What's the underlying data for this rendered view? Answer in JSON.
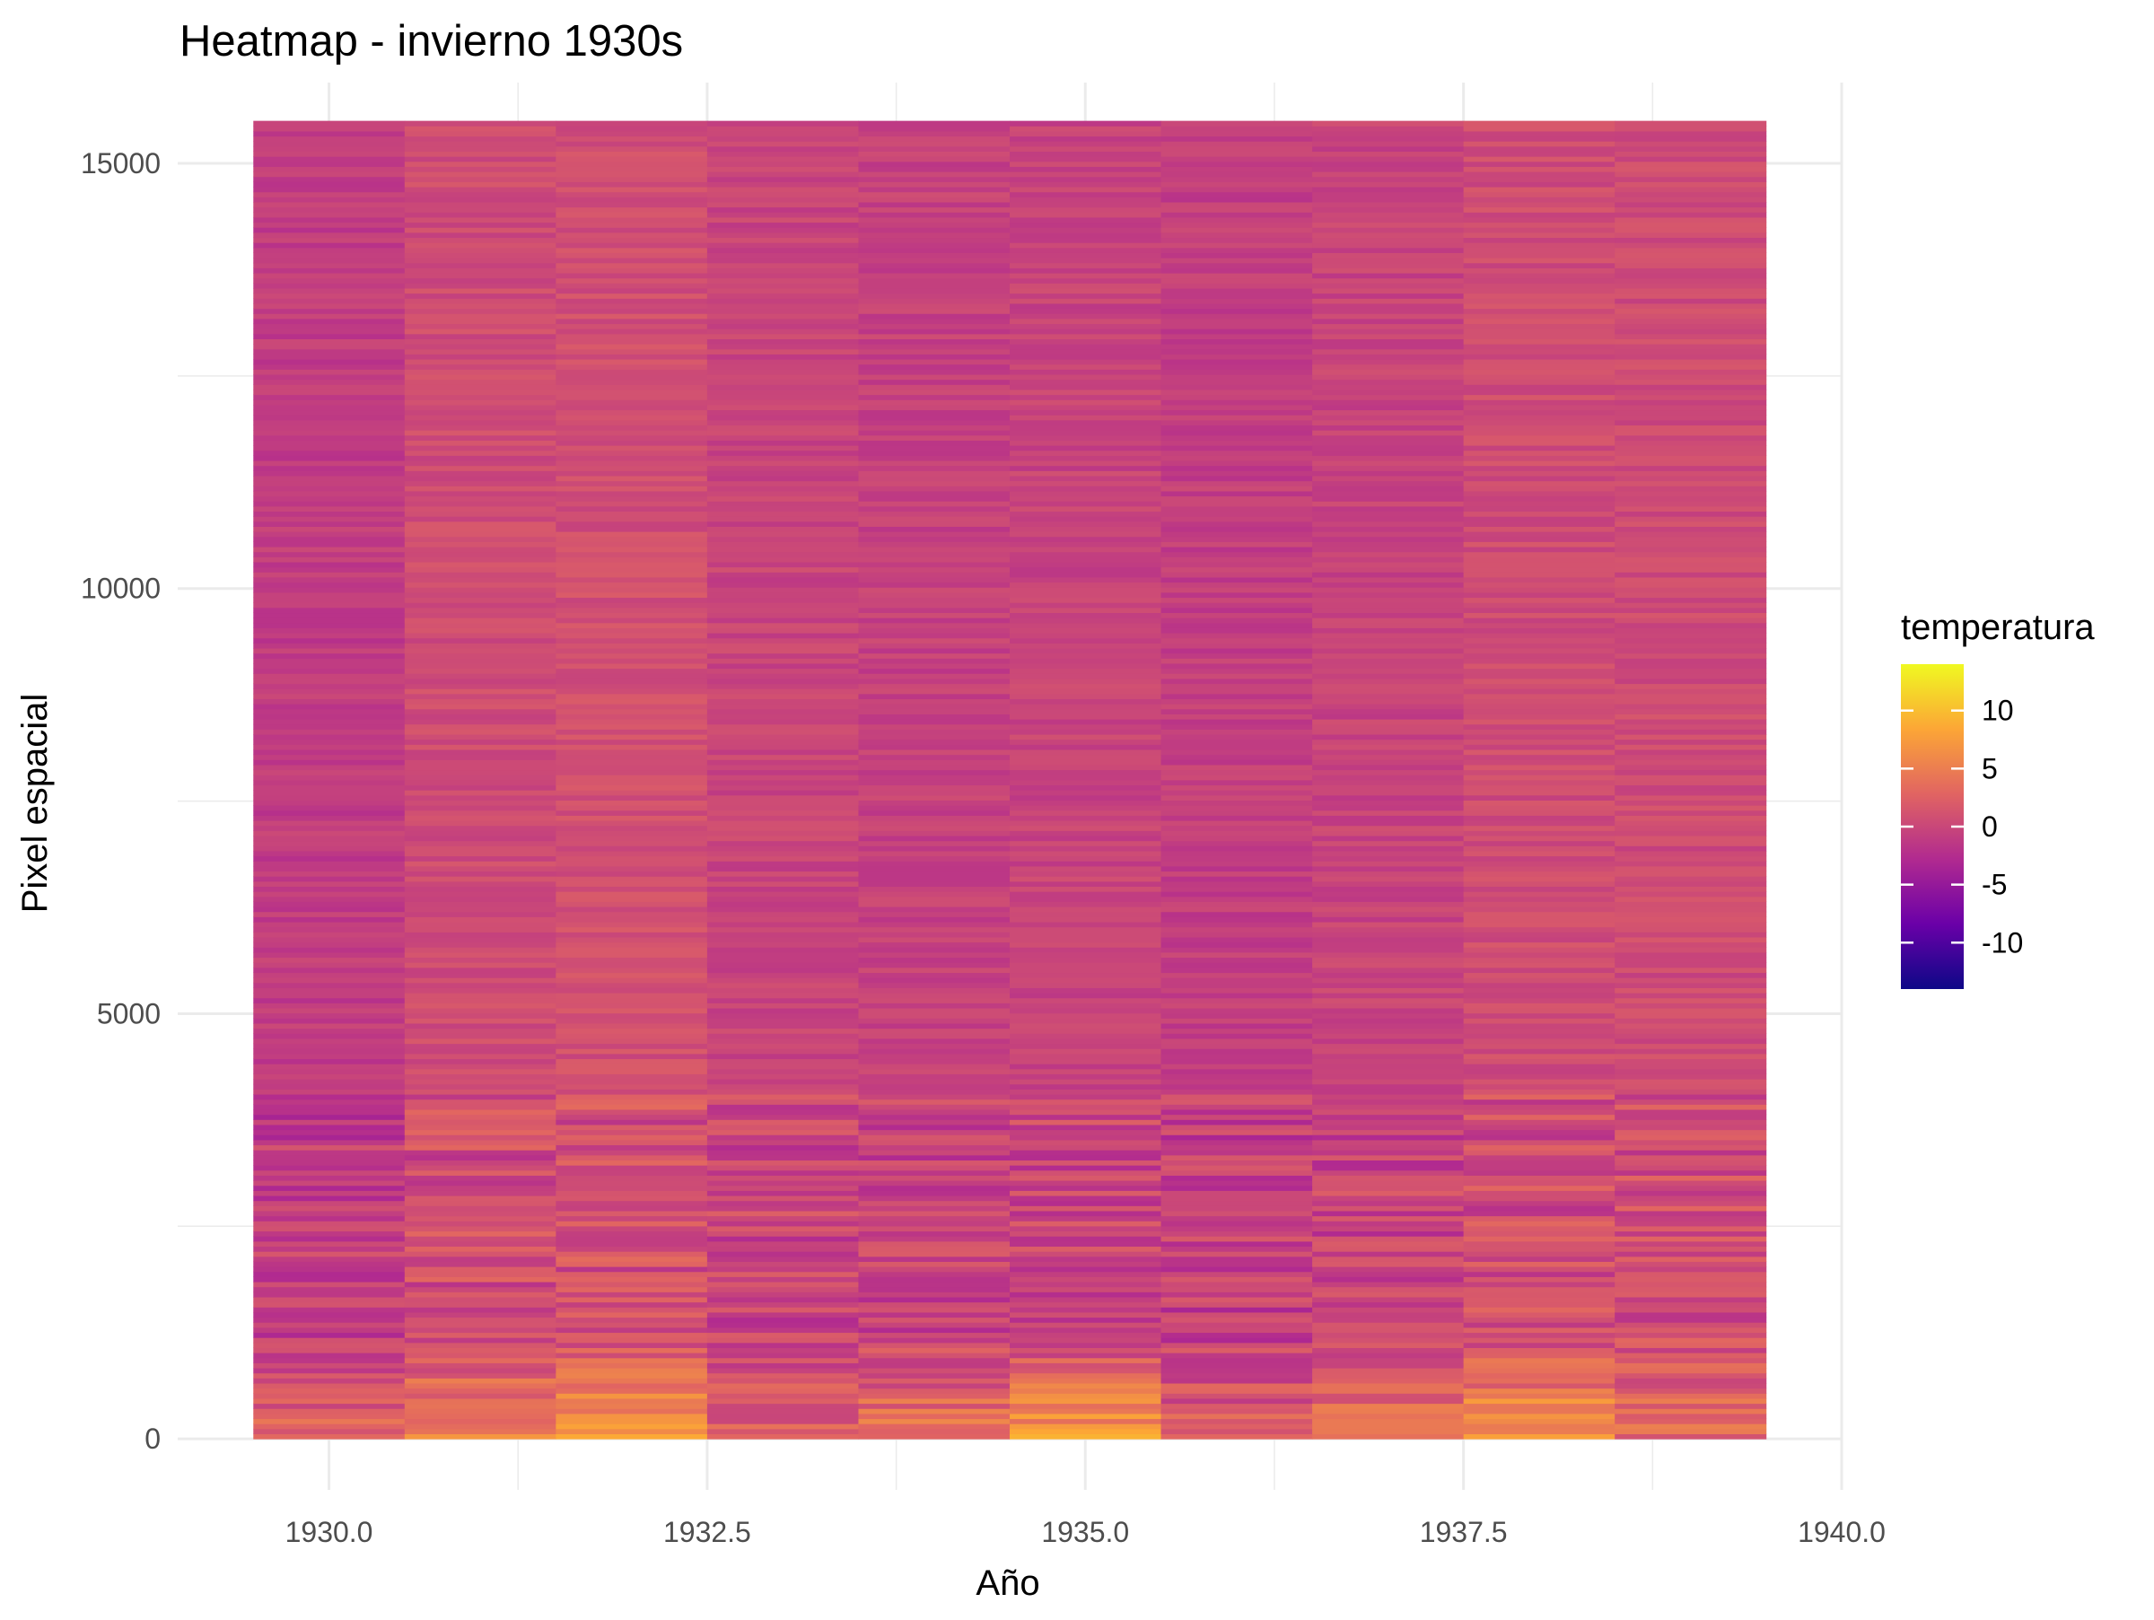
{
  "chart_data": {
    "type": "heatmap",
    "title": "Heatmap - invierno 1930s",
    "xlabel": "Año",
    "ylabel": "Pixel espacial",
    "x_ticks": [
      "1930.0",
      "1932.5",
      "1935.0",
      "1937.5",
      "1940.0"
    ],
    "y_ticks": [
      "0",
      "5000",
      "10000",
      "15000"
    ],
    "xlim": [
      1929,
      1940
    ],
    "ylim": [
      -600,
      15950
    ],
    "x": [
      1930,
      1931,
      1932,
      1933,
      1934,
      1935,
      1936,
      1937,
      1938,
      1939
    ],
    "pixel_range": [
      0,
      15500
    ],
    "grid": true,
    "legend": {
      "title": "temperatura",
      "position": "right",
      "ticks": [
        "10",
        "5",
        "0",
        "-5",
        "-10"
      ],
      "range": [
        -14,
        14
      ],
      "colors": [
        "#0d0887",
        "#6a00a8",
        "#b12a90",
        "#e16462",
        "#fca636",
        "#f0f921"
      ]
    },
    "column_means": [
      {
        "year": 1930,
        "mean_temp": -1.0
      },
      {
        "year": 1931,
        "mean_temp": 0.5
      },
      {
        "year": 1932,
        "mean_temp": 0.8
      },
      {
        "year": 1933,
        "mean_temp": -0.2
      },
      {
        "year": 1934,
        "mean_temp": -0.5
      },
      {
        "year": 1935,
        "mean_temp": -0.3
      },
      {
        "year": 1936,
        "mean_temp": -0.8
      },
      {
        "year": 1937,
        "mean_temp": -0.3
      },
      {
        "year": 1938,
        "mean_temp": 0.5
      },
      {
        "year": 1939,
        "mean_temp": 0.4
      }
    ]
  }
}
